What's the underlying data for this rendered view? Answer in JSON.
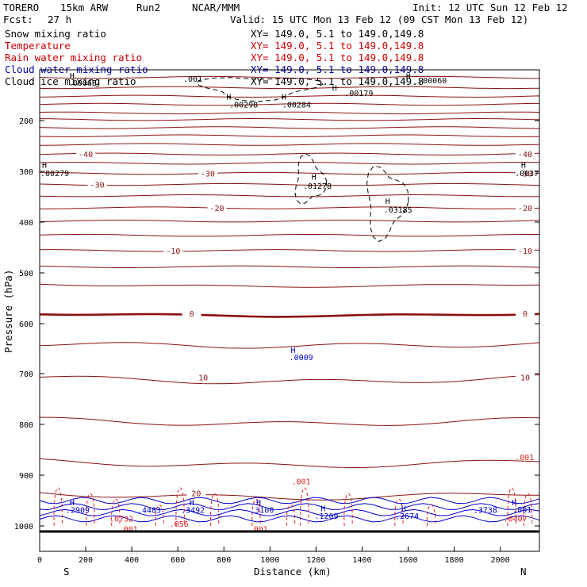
{
  "chart_data": {
    "type": "contour",
    "header": {
      "model": "TORERO",
      "grid": "15km ARW",
      "run": "Run2",
      "source": "NCAR/MMM",
      "init": "Init: 12 UTC Sun 12 Feb 12",
      "fcst_label": "Fcst:",
      "fcst_value": "27 h",
      "valid": "Valid: 15 UTC Mon 13 Feb 12 (09 CST Mon 13 Feb 12)"
    },
    "legend": [
      {
        "name": "Snow mixing ratio",
        "color": "#000000",
        "range": "XY= 149.0,  5.1 to 149.0,149.8"
      },
      {
        "name": "Temperature",
        "color": "#cc0000",
        "range": "XY= 149.0,  5.1 to 149.0,149.8"
      },
      {
        "name": "Rain water mixing ratio",
        "color": "#cc0000",
        "range": "XY= 149.0,  5.1 to 149.0,149.8"
      },
      {
        "name": "Cloud water mixing ratio",
        "color": "#0000aa",
        "range": "XY= 149.0,  5.1 to 149.0,149.8"
      },
      {
        "name": "Cloud ice mixing ratio",
        "color": "#000000",
        "range": "XY= 149.0,  5.1 to 149.0,149.8"
      }
    ],
    "xlabel": "Distance (km)",
    "ylabel": "Pressure (hPa)",
    "xlim": [
      0,
      2170
    ],
    "ylim": [
      1010,
      100
    ],
    "x_ticks": [
      0,
      200,
      400,
      600,
      800,
      1000,
      1200,
      1400,
      1600,
      1800,
      2000
    ],
    "y_ticks": [
      200,
      300,
      400,
      500,
      600,
      700,
      800,
      900,
      1000
    ],
    "endpoints": {
      "left": "S",
      "right": "N"
    },
    "colors": {
      "temperature": "#8b1010",
      "rain": "#dd2222",
      "cloud_water": "#0000cc",
      "axis": "#000000"
    },
    "temperature_contours": [
      {
        "p": 115,
        "slope": 0
      },
      {
        "p": 135,
        "slope": 0
      },
      {
        "p": 152,
        "slope": 0
      },
      {
        "p": 168,
        "slope": 0
      },
      {
        "p": 185,
        "slope": 0
      },
      {
        "p": 198,
        "slope": 0
      },
      {
        "p": 214,
        "slope": 0
      },
      {
        "p": 230,
        "slope": 0
      },
      {
        "p": 247,
        "slope": 0
      },
      {
        "p": 266,
        "slope": 0,
        "label": "-40",
        "lx": 200,
        "rlabel": "-40"
      },
      {
        "p": 284,
        "slope": 0
      },
      {
        "p": 304,
        "slope": 0,
        "label": "-30",
        "lx": 730,
        "rlabel": "-30"
      },
      {
        "p": 326,
        "slope": 0,
        "label": "-30",
        "lx": 250
      },
      {
        "p": 348,
        "slope": 0
      },
      {
        "p": 372,
        "slope": 0,
        "label": "-20",
        "lx": 770,
        "rlabel": "-20"
      },
      {
        "p": 398,
        "slope": 0
      },
      {
        "p": 426,
        "slope": 0
      },
      {
        "p": 456,
        "slope": 0,
        "label": "-10",
        "lx": 580,
        "rlabel": "-10"
      },
      {
        "p": 488,
        "slope": 0
      },
      {
        "p": 522,
        "slope": 0
      },
      {
        "p": 580,
        "slope": 0,
        "label": "0",
        "lx": 660,
        "rlabel": "0",
        "bold": true
      },
      {
        "p": 640,
        "slope": 0
      },
      {
        "p": 707,
        "slope": 0,
        "label": "10",
        "lx": 710,
        "rlabel": "10"
      },
      {
        "p": 790,
        "slope": 0
      },
      {
        "p": 872,
        "slope": 0
      },
      {
        "p": 935,
        "slope": 0,
        "label": "20",
        "lx": 680
      }
    ],
    "extrema_labels": [
      {
        "text": ".00063",
        "x": 120,
        "p": 125,
        "color": "#000000"
      },
      {
        "text": ".001",
        "x": 620,
        "p": 117,
        "color": "#000000"
      },
      {
        "text": ".00298",
        "x": 820,
        "p": 168,
        "color": "#000000"
      },
      {
        "text": ".00284",
        "x": 1050,
        "p": 168,
        "color": "#000000"
      },
      {
        "text": ".00179",
        "x": 1320,
        "p": 145,
        "color": "#000000"
      },
      {
        "text": ".00060",
        "x": 1640,
        "p": 120,
        "color": "#000000"
      },
      {
        "text": ".00279",
        "x": 0,
        "p": 303,
        "color": "#000000"
      },
      {
        "text": ".01278",
        "x": 1140,
        "p": 328,
        "color": "#000000"
      },
      {
        "text": ".03185",
        "x": 1490,
        "p": 375,
        "color": "#000000"
      },
      {
        "text": ".0037",
        "x": 2060,
        "p": 303,
        "color": "#000000"
      },
      {
        "text": ".0009",
        "x": 1080,
        "p": 667,
        "color": "#0000cc"
      },
      {
        "text": ".2909",
        "x": 110,
        "p": 968,
        "color": "#0000cc"
      },
      {
        "text": ".0732",
        "x": 300,
        "p": 985,
        "color": "#dd2222"
      },
      {
        "text": ".4483",
        "x": 420,
        "p": 968,
        "color": "#0000cc"
      },
      {
        "text": ".3492",
        "x": 610,
        "p": 968,
        "color": "#0000cc"
      },
      {
        "text": ".056",
        "x": 560,
        "p": 995,
        "color": "#dd2222"
      },
      {
        "text": ".3100",
        "x": 910,
        "p": 968,
        "color": "#0000cc"
      },
      {
        "text": ".1209",
        "x": 1190,
        "p": 980,
        "color": "#0000cc"
      },
      {
        "text": ".2674",
        "x": 1540,
        "p": 980,
        "color": "#0000cc"
      },
      {
        "text": ".3738",
        "x": 1880,
        "p": 968,
        "color": "#0000cc"
      },
      {
        "text": ".0407",
        "x": 2010,
        "p": 985,
        "color": "#dd2222"
      },
      {
        "text": ".001",
        "x": 2060,
        "p": 864,
        "color": "#dd2222"
      },
      {
        "text": ".001",
        "x": 1090,
        "p": 912,
        "color": "#dd2222"
      },
      {
        "text": ".001",
        "x": 340,
        "p": 1005,
        "color": "#dd2222"
      },
      {
        "text": ".001",
        "x": 905,
        "p": 1005,
        "color": "#dd2222"
      },
      {
        "text": ".001",
        "x": 2050,
        "p": 967,
        "color": "#0000cc"
      }
    ],
    "h_markers": [
      {
        "x": 120,
        "p": 111,
        "color": "#000000"
      },
      {
        "x": 800,
        "p": 152,
        "color": "#000000"
      },
      {
        "x": 1040,
        "p": 152,
        "color": "#000000"
      },
      {
        "x": 1260,
        "p": 135,
        "color": "#000000"
      },
      {
        "x": 1580,
        "p": 112,
        "color": "#000000"
      },
      {
        "x": 0,
        "p": 287,
        "color": "#000000"
      },
      {
        "x": 1170,
        "p": 310,
        "color": "#000000"
      },
      {
        "x": 1490,
        "p": 358,
        "color": "#000000"
      },
      {
        "x": 2080,
        "p": 287,
        "color": "#000000"
      },
      {
        "x": 1080,
        "p": 652,
        "color": "#0000cc"
      },
      {
        "x": 120,
        "p": 953,
        "color": "#0000cc"
      },
      {
        "x": 640,
        "p": 953,
        "color": "#0000cc"
      },
      {
        "x": 930,
        "p": 953,
        "color": "#0000cc"
      },
      {
        "x": 1210,
        "p": 965,
        "color": "#0000cc"
      },
      {
        "x": 1560,
        "p": 965,
        "color": "#0000cc"
      },
      {
        "x": 2040,
        "p": 953,
        "color": "#0000cc"
      }
    ]
  }
}
